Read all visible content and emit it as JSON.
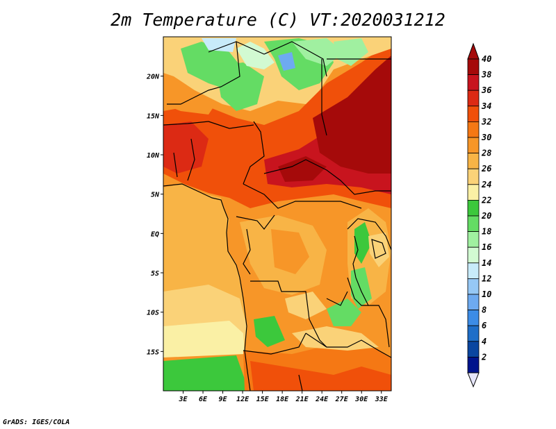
{
  "title": "2m Temperature (C) VT:2020031212",
  "credit": "GrADS: IGES/COLA",
  "map": {
    "lat_labels": [
      {
        "lat": 20,
        "label": "20N"
      },
      {
        "lat": 15,
        "label": "15N"
      },
      {
        "lat": 10,
        "label": "10N"
      },
      {
        "lat": 5,
        "label": "5N"
      },
      {
        "lat": 0,
        "label": "EQ"
      },
      {
        "lat": -5,
        "label": "5S"
      },
      {
        "lat": -10,
        "label": "10S"
      },
      {
        "lat": -15,
        "label": "15S"
      }
    ],
    "lon_labels": [
      {
        "lon": 3,
        "label": "3E"
      },
      {
        "lon": 6,
        "label": "6E"
      },
      {
        "lon": 9,
        "label": "9E"
      },
      {
        "lon": 12,
        "label": "12E"
      },
      {
        "lon": 15,
        "label": "15E"
      },
      {
        "lon": 18,
        "label": "18E"
      },
      {
        "lon": 21,
        "label": "21E"
      },
      {
        "lon": 24,
        "label": "24E"
      },
      {
        "lon": 27,
        "label": "27E"
      },
      {
        "lon": 30,
        "label": "30E"
      },
      {
        "lon": 33,
        "label": "33E"
      }
    ],
    "lon_range": [
      0,
      34.5
    ],
    "lat_range": [
      -20,
      25
    ]
  },
  "colorbar": {
    "levels": [
      "40",
      "38",
      "36",
      "34",
      "32",
      "30",
      "28",
      "26",
      "24",
      "22",
      "20",
      "18",
      "16",
      "14",
      "12",
      "10",
      "8",
      "6",
      "4",
      "2"
    ],
    "colors": [
      "#a50a0a",
      "#c8141e",
      "#dc2a14",
      "#f0500a",
      "#f57814",
      "#f79628",
      "#f8b446",
      "#fad278",
      "#faf0a5",
      "#3cc83c",
      "#64dc64",
      "#a0f0a0",
      "#d2fad2",
      "#c8ebfa",
      "#96c8f5",
      "#6eaaf0",
      "#3c8ce6",
      "#1e6ec8",
      "#0a46a0",
      "#00148c"
    ]
  }
}
